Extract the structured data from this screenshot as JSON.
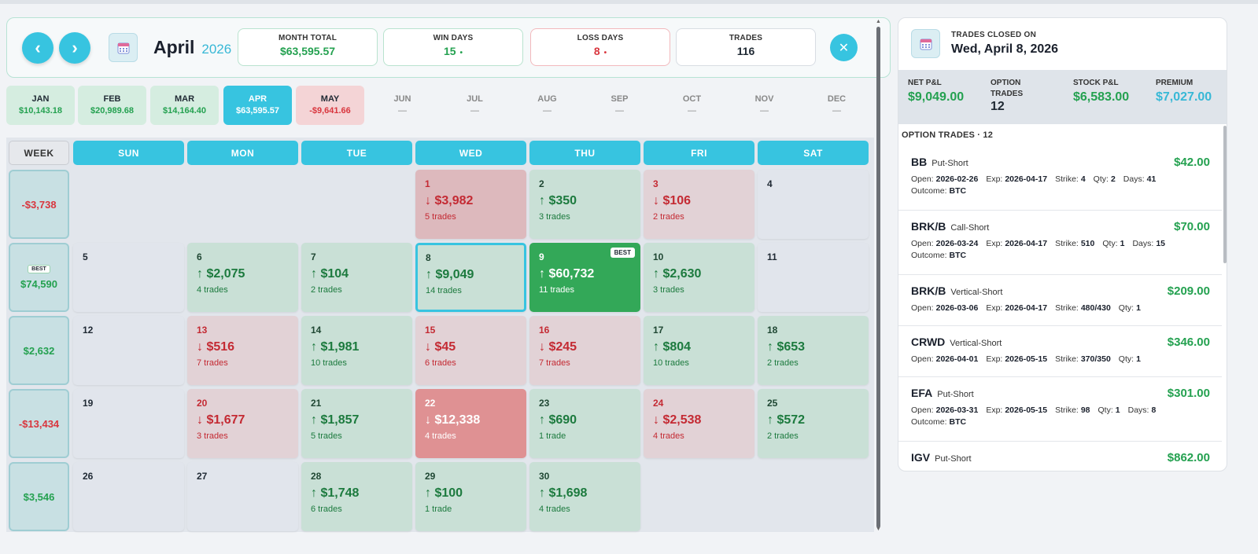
{
  "header": {
    "prev_label": "‹",
    "next_label": "›",
    "month": "April",
    "year": "2026",
    "stats": [
      {
        "label": "MONTH TOTAL",
        "value": "$63,595.57",
        "tone": "green"
      },
      {
        "label": "WIN DAYS",
        "value": "15",
        "tone": "green",
        "dot": "•"
      },
      {
        "label": "LOSS DAYS",
        "value": "8",
        "tone": "red",
        "dot": "•"
      },
      {
        "label": "TRADES",
        "value": "116",
        "tone": "dark"
      }
    ],
    "close_label": "✕"
  },
  "months": [
    {
      "name": "JAN",
      "value": "$10,143.18",
      "state": "pos"
    },
    {
      "name": "FEB",
      "value": "$20,989.68",
      "state": "pos"
    },
    {
      "name": "MAR",
      "value": "$14,164.40",
      "state": "pos"
    },
    {
      "name": "APR",
      "value": "$63,595.57",
      "state": "sel"
    },
    {
      "name": "MAY",
      "value": "-$9,641.66",
      "state": "neg"
    },
    {
      "name": "JUN",
      "value": "—",
      "state": "empty"
    },
    {
      "name": "JUL",
      "value": "—",
      "state": "empty"
    },
    {
      "name": "AUG",
      "value": "—",
      "state": "empty"
    },
    {
      "name": "SEP",
      "value": "—",
      "state": "empty"
    },
    {
      "name": "OCT",
      "value": "—",
      "state": "empty"
    },
    {
      "name": "NOV",
      "value": "—",
      "state": "empty"
    },
    {
      "name": "DEC",
      "value": "—",
      "state": "empty"
    }
  ],
  "day_headers": [
    "WEEK",
    "SUN",
    "MON",
    "TUE",
    "WED",
    "THU",
    "FRI",
    "SAT"
  ],
  "weeks": [
    {
      "total": "-$3,738",
      "tone": "red",
      "best": false
    },
    {
      "total": "$74,590",
      "tone": "green",
      "best": true,
      "best_label": "BEST"
    },
    {
      "total": "$2,632",
      "tone": "green",
      "best": false
    },
    {
      "total": "-$13,434",
      "tone": "red",
      "best": false
    },
    {
      "total": "$3,546",
      "tone": "green",
      "best": false
    }
  ],
  "days": [
    [
      null,
      null,
      null,
      {
        "day": "1",
        "amount": "↓ $3,982",
        "trades": "5 trades",
        "state": "sneg"
      },
      {
        "day": "2",
        "amount": "↑ $350",
        "trades": "3 trades",
        "state": "pos"
      },
      {
        "day": "3",
        "amount": "↓ $106",
        "trades": "2 trades",
        "state": "neg"
      },
      {
        "day": "4",
        "state": "none"
      }
    ],
    [
      {
        "day": "5",
        "state": "none"
      },
      {
        "day": "6",
        "amount": "↑ $2,075",
        "trades": "4 trades",
        "state": "pos"
      },
      {
        "day": "7",
        "amount": "↑ $104",
        "trades": "2 trades",
        "state": "pos"
      },
      {
        "day": "8",
        "amount": "↑ $9,049",
        "trades": "14 trades",
        "state": "pos",
        "selected": true
      },
      {
        "day": "9",
        "amount": "↑ $60,732",
        "trades": "11 trades",
        "state": "strongpos",
        "badge": "BEST"
      },
      {
        "day": "10",
        "amount": "↑ $2,630",
        "trades": "3 trades",
        "state": "pos"
      },
      {
        "day": "11",
        "state": "none"
      }
    ],
    [
      {
        "day": "12",
        "state": "none"
      },
      {
        "day": "13",
        "amount": "↓ $516",
        "trades": "7 trades",
        "state": "neg"
      },
      {
        "day": "14",
        "amount": "↑ $1,981",
        "trades": "10 trades",
        "state": "pos"
      },
      {
        "day": "15",
        "amount": "↓ $45",
        "trades": "6 trades",
        "state": "neg"
      },
      {
        "day": "16",
        "amount": "↓ $245",
        "trades": "7 trades",
        "state": "neg"
      },
      {
        "day": "17",
        "amount": "↑ $804",
        "trades": "10 trades",
        "state": "pos"
      },
      {
        "day": "18",
        "amount": "↑ $653",
        "trades": "2 trades",
        "state": "pos"
      }
    ],
    [
      {
        "day": "19",
        "state": "none"
      },
      {
        "day": "20",
        "amount": "↓ $1,677",
        "trades": "3 trades",
        "state": "neg"
      },
      {
        "day": "21",
        "amount": "↑ $1,857",
        "trades": "5 trades",
        "state": "pos"
      },
      {
        "day": "22",
        "amount": "↓ $12,338",
        "trades": "4 trades",
        "state": "strongneg"
      },
      {
        "day": "23",
        "amount": "↑ $690",
        "trades": "1 trade",
        "state": "pos"
      },
      {
        "day": "24",
        "amount": "↓ $2,538",
        "trades": "4 trades",
        "state": "neg"
      },
      {
        "day": "25",
        "amount": "↑ $572",
        "trades": "2 trades",
        "state": "pos"
      }
    ],
    [
      {
        "day": "26",
        "state": "none"
      },
      {
        "day": "27",
        "state": "none"
      },
      {
        "day": "28",
        "amount": "↑ $1,748",
        "trades": "6 trades",
        "state": "pos"
      },
      {
        "day": "29",
        "amount": "↑ $100",
        "trades": "1 trade",
        "state": "pos"
      },
      {
        "day": "30",
        "amount": "↑ $1,698",
        "trades": "4 trades",
        "state": "pos"
      },
      null,
      null
    ]
  ],
  "panel": {
    "subtitle": "TRADES CLOSED ON",
    "date": "Wed, April 8, 2026",
    "summary": [
      {
        "label": "NET P&L",
        "value": "$9,049.00",
        "tone": "green"
      },
      {
        "label": "OPTION TRADES",
        "value": "12",
        "tone": "dark"
      },
      {
        "label": "STOCK P&L",
        "value": "$6,583.00",
        "tone": "green"
      },
      {
        "label": "PREMIUM",
        "value": "$7,027.00",
        "tone": "blue"
      }
    ],
    "list_header": "OPTION TRADES · 12",
    "trades": [
      {
        "symbol": "BB",
        "type": "Put-Short",
        "amount": "$42.00",
        "open": "2026-02-26",
        "exp": "2026-04-17",
        "strike": "4",
        "qty": "2",
        "days": "41",
        "outcome": "BTC"
      },
      {
        "symbol": "BRK/B",
        "type": "Call-Short",
        "amount": "$70.00",
        "open": "2026-03-24",
        "exp": "2026-04-17",
        "strike": "510",
        "qty": "1",
        "days": "15",
        "outcome": "BTC"
      },
      {
        "symbol": "BRK/B",
        "type": "Vertical-Short",
        "amount": "$209.00",
        "open": "2026-03-06",
        "exp": "2026-04-17",
        "strike": "480/430",
        "qty": "1"
      },
      {
        "symbol": "CRWD",
        "type": "Vertical-Short",
        "amount": "$346.00",
        "open": "2026-04-01",
        "exp": "2026-05-15",
        "strike": "370/350",
        "qty": "1"
      },
      {
        "symbol": "EFA",
        "type": "Put-Short",
        "amount": "$301.00",
        "open": "2026-03-31",
        "exp": "2026-05-15",
        "strike": "98",
        "qty": "1",
        "days": "8",
        "outcome": "BTC"
      },
      {
        "symbol": "IGV",
        "type": "Put-Short",
        "amount": "$862.00"
      }
    ],
    "labels": {
      "open": "Open:",
      "exp": "Exp:",
      "strike": "Strike:",
      "qty": "Qty:",
      "days": "Days:",
      "outcome": "Outcome:"
    }
  },
  "colors": {
    "accent": "#37c4e0",
    "positive": "#24a150",
    "negative": "#d9363e"
  }
}
